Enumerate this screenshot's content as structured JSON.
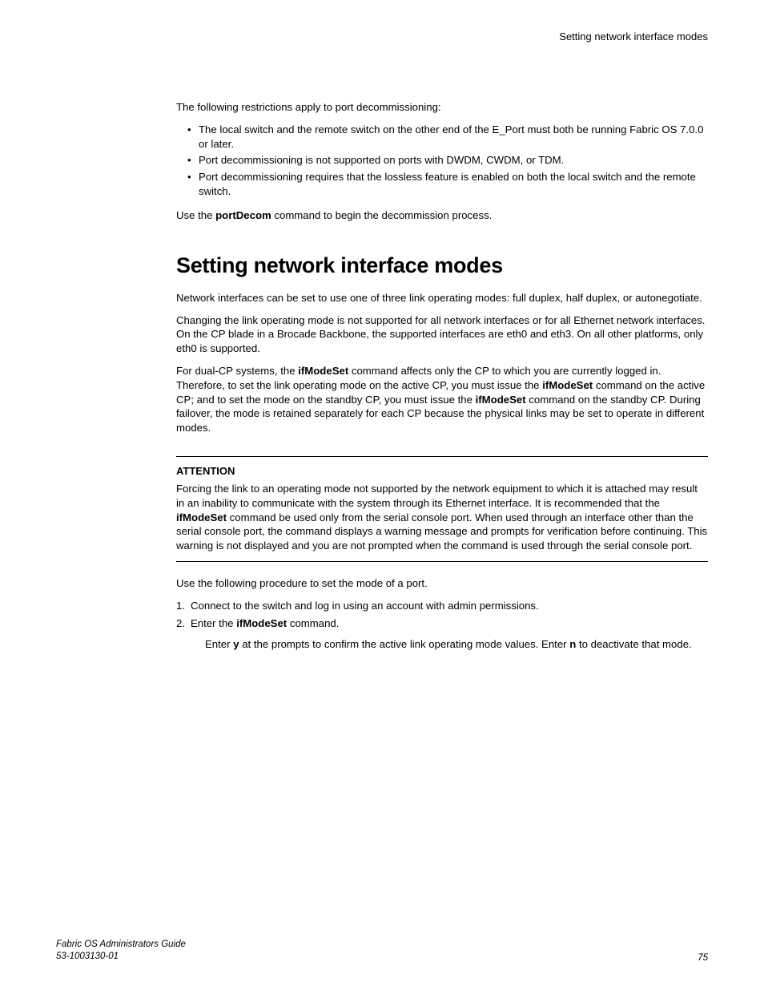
{
  "running_head": "Setting network interface modes",
  "intro_para": "The following restrictions apply to port decommissioning:",
  "bullets": [
    "The local switch and the remote switch on the other end of the E_Port must both be running Fabric OS 7.0.0 or later.",
    "Port decommissioning is not supported on ports with DWDM, CWDM, or TDM.",
    "Port decommissioning requires that the lossless feature is enabled on both the local switch and the remote switch."
  ],
  "use_cmd": {
    "pre": "Use the ",
    "cmd": "portDecom",
    "post": " command to begin the decommission process."
  },
  "section_title": "Setting network interface modes",
  "p1": "Network interfaces can be set to use one of three link operating modes: full duplex, half duplex, or autonegotiate.",
  "p2": "Changing the link operating mode is not supported for all network interfaces or for all Ethernet network interfaces. On the CP blade in a Brocade Backbone, the supported interfaces are eth0 and eth3. On all other platforms, only eth0 is supported.",
  "p3": {
    "a": "For dual-CP systems, the ",
    "b": "ifModeSet",
    "c": " command affects only the CP to which you are currently logged in. Therefore, to set the link operating mode on the active CP, you must issue the ",
    "d": "ifModeSet",
    "e": " command on the active CP; and to set the mode on the standby CP, you must issue the ",
    "f": "ifModeSet",
    "g": " command on the standby CP. During failover, the mode is retained separately for each CP because the physical links may be set to operate in different modes."
  },
  "attention": {
    "title": "ATTENTION",
    "a": "Forcing the link to an operating mode not supported by the network equipment to which it is attached may result in an inability to communicate with the system through its Ethernet interface. It is recommended that the ",
    "b": "ifModeSet",
    "c": " command be used only from the serial console port. When used through an interface other than the serial console port, the command displays a warning message and prompts for verification before continuing. This warning is not displayed and you are not prompted when the command is used through the serial console port."
  },
  "proc_intro": "Use the following procedure to set the mode of a port.",
  "steps": {
    "s1": "Connect to the switch and log in using an account with admin permissions.",
    "s2a": "Enter the ",
    "s2b": "ifModeSet",
    "s2c": " command.",
    "sub_a": "Enter ",
    "sub_b": "y",
    "sub_c": " at the prompts to confirm the active link operating mode values. Enter ",
    "sub_d": "n",
    "sub_e": " to deactivate that mode."
  },
  "footer": {
    "title": "Fabric OS Administrators Guide",
    "docnum": "53-1003130-01",
    "page": "75"
  }
}
